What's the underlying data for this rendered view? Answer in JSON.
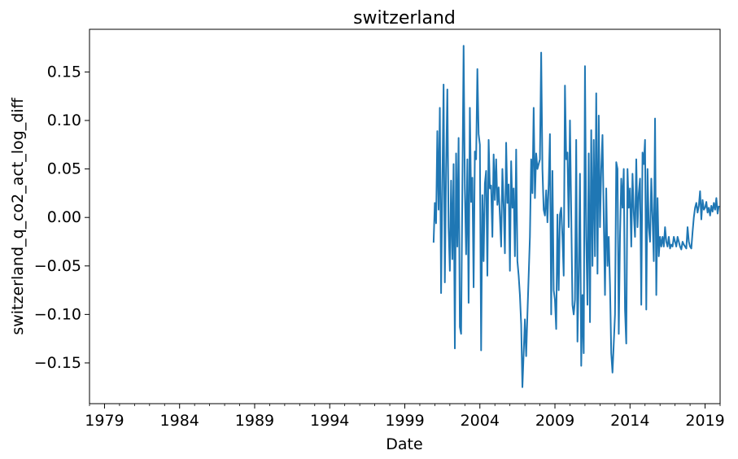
{
  "chart_data": {
    "type": "line",
    "title": "switzerland",
    "xlabel": "Date",
    "ylabel": "switzerland_q_co2_act_log_diff",
    "xlim": [
      "1978-01-01",
      "2020-01-01"
    ],
    "ylim": [
      -0.192,
      0.194
    ],
    "xticks": [
      {
        "date": "1979-01-01",
        "label": "1979"
      },
      {
        "date": "1984-01-01",
        "label": "1984"
      },
      {
        "date": "1989-01-01",
        "label": "1989"
      },
      {
        "date": "1994-01-01",
        "label": "1994"
      },
      {
        "date": "1999-01-01",
        "label": "1999"
      },
      {
        "date": "2004-01-01",
        "label": "2004"
      },
      {
        "date": "2009-01-01",
        "label": "2009"
      },
      {
        "date": "2014-01-01",
        "label": "2014"
      },
      {
        "date": "2019-01-01",
        "label": "2019"
      }
    ],
    "yticks": [
      {
        "value": 0.15,
        "label": "0.15"
      },
      {
        "value": 0.1,
        "label": "0.10"
      },
      {
        "value": 0.05,
        "label": "0.05"
      },
      {
        "value": 0.0,
        "label": "0.00"
      },
      {
        "value": -0.05,
        "label": "−0.05"
      },
      {
        "value": -0.1,
        "label": "−0.10"
      },
      {
        "value": -0.15,
        "label": "−0.15"
      }
    ],
    "grid": false,
    "series": [
      {
        "color": "#1f77b4",
        "points": [
          [
            "2000-12-01",
            -0.026
          ],
          [
            "2001-01-01",
            0.015
          ],
          [
            "2001-02-01",
            -0.006
          ],
          [
            "2001-03-01",
            0.089
          ],
          [
            "2001-04-01",
            0.008
          ],
          [
            "2001-05-01",
            0.113
          ],
          [
            "2001-06-01",
            -0.078
          ],
          [
            "2001-07-01",
            0.033
          ],
          [
            "2001-08-01",
            0.137
          ],
          [
            "2001-09-01",
            -0.067
          ],
          [
            "2001-10-01",
            0.05
          ],
          [
            "2001-11-01",
            0.132
          ],
          [
            "2001-12-01",
            -0.01
          ],
          [
            "2002-01-01",
            -0.055
          ],
          [
            "2002-02-01",
            0.038
          ],
          [
            "2002-03-01",
            -0.043
          ],
          [
            "2002-04-01",
            0.055
          ],
          [
            "2002-05-01",
            -0.135
          ],
          [
            "2002-06-01",
            0.066
          ],
          [
            "2002-07-01",
            -0.03
          ],
          [
            "2002-08-01",
            0.082
          ],
          [
            "2002-09-01",
            -0.113
          ],
          [
            "2002-10-01",
            -0.12
          ],
          [
            "2002-11-01",
            0.028
          ],
          [
            "2002-12-01",
            0.177
          ],
          [
            "2003-01-01",
            0.03
          ],
          [
            "2003-02-01",
            -0.038
          ],
          [
            "2003-03-01",
            0.06
          ],
          [
            "2003-04-01",
            -0.088
          ],
          [
            "2003-05-01",
            0.113
          ],
          [
            "2003-06-01",
            0.016
          ],
          [
            "2003-07-01",
            0.041
          ],
          [
            "2003-08-01",
            -0.072
          ],
          [
            "2003-09-01",
            0.068
          ],
          [
            "2003-10-01",
            0.06
          ],
          [
            "2003-11-01",
            0.153
          ],
          [
            "2003-12-01",
            0.086
          ],
          [
            "2004-01-01",
            0.075
          ],
          [
            "2004-02-01",
            -0.137
          ],
          [
            "2004-03-01",
            0.023
          ],
          [
            "2004-04-01",
            -0.045
          ],
          [
            "2004-05-01",
            0.035
          ],
          [
            "2004-06-01",
            0.048
          ],
          [
            "2004-07-01",
            -0.06
          ],
          [
            "2004-08-01",
            0.08
          ],
          [
            "2004-09-01",
            0.03
          ],
          [
            "2004-10-01",
            0.033
          ],
          [
            "2004-11-01",
            -0.02
          ],
          [
            "2004-12-01",
            0.065
          ],
          [
            "2005-01-01",
            0.018
          ],
          [
            "2005-02-01",
            0.06
          ],
          [
            "2005-03-01",
            0.013
          ],
          [
            "2005-04-01",
            0.031
          ],
          [
            "2005-05-01",
            0.002
          ],
          [
            "2005-06-01",
            -0.03
          ],
          [
            "2005-07-01",
            0.05
          ],
          [
            "2005-08-01",
            0.013
          ],
          [
            "2005-09-01",
            -0.037
          ],
          [
            "2005-10-01",
            0.077
          ],
          [
            "2005-11-01",
            0.015
          ],
          [
            "2005-12-01",
            0.034
          ],
          [
            "2006-01-01",
            -0.055
          ],
          [
            "2006-02-01",
            0.058
          ],
          [
            "2006-03-01",
            0.01
          ],
          [
            "2006-04-01",
            0.03
          ],
          [
            "2006-05-01",
            -0.04
          ],
          [
            "2006-06-01",
            0.07
          ],
          [
            "2006-07-01",
            -0.045
          ],
          [
            "2006-08-01",
            -0.06
          ],
          [
            "2006-09-01",
            -0.08
          ],
          [
            "2006-10-01",
            -0.11
          ],
          [
            "2006-11-01",
            -0.175
          ],
          [
            "2007-01-01",
            -0.105
          ],
          [
            "2007-02-01",
            -0.143
          ],
          [
            "2007-03-01",
            -0.1
          ],
          [
            "2007-04-01",
            -0.06
          ],
          [
            "2007-05-01",
            -0.02
          ],
          [
            "2007-06-01",
            0.06
          ],
          [
            "2007-07-01",
            0.025
          ],
          [
            "2007-08-01",
            0.113
          ],
          [
            "2007-09-01",
            0.02
          ],
          [
            "2007-10-01",
            0.066
          ],
          [
            "2007-11-01",
            0.05
          ],
          [
            "2007-12-01",
            0.055
          ],
          [
            "2008-01-01",
            0.06
          ],
          [
            "2008-02-01",
            0.17
          ],
          [
            "2008-03-01",
            0.05
          ],
          [
            "2008-04-01",
            0.008
          ],
          [
            "2008-05-01",
            0.002
          ],
          [
            "2008-06-01",
            0.028
          ],
          [
            "2008-07-01",
            -0.005
          ],
          [
            "2008-08-01",
            0.035
          ],
          [
            "2008-09-01",
            0.086
          ],
          [
            "2008-10-01",
            -0.1
          ],
          [
            "2008-11-01",
            0.048
          ],
          [
            "2008-12-01",
            -0.075
          ],
          [
            "2009-01-01",
            -0.085
          ],
          [
            "2009-02-01",
            -0.115
          ],
          [
            "2009-03-01",
            0.003
          ],
          [
            "2009-04-01",
            -0.075
          ],
          [
            "2009-05-01",
            0.003
          ],
          [
            "2009-06-01",
            0.01
          ],
          [
            "2009-07-01",
            -0.02
          ],
          [
            "2009-08-01",
            -0.06
          ],
          [
            "2009-09-01",
            0.136
          ],
          [
            "2009-10-01",
            0.06
          ],
          [
            "2009-11-01",
            0.067
          ],
          [
            "2009-12-01",
            -0.01
          ],
          [
            "2010-01-01",
            0.1
          ],
          [
            "2010-02-01",
            0.005
          ],
          [
            "2010-03-01",
            -0.09
          ],
          [
            "2010-04-01",
            -0.1
          ],
          [
            "2010-05-01",
            -0.085
          ],
          [
            "2010-06-01",
            0.08
          ],
          [
            "2010-07-01",
            -0.128
          ],
          [
            "2010-08-01",
            -0.06
          ],
          [
            "2010-09-01",
            0.045
          ],
          [
            "2010-10-01",
            -0.153
          ],
          [
            "2010-11-01",
            -0.08
          ],
          [
            "2010-12-01",
            -0.14
          ],
          [
            "2011-01-01",
            0.156
          ],
          [
            "2011-02-01",
            -0.02
          ],
          [
            "2011-03-01",
            -0.09
          ],
          [
            "2011-04-01",
            0.066
          ],
          [
            "2011-05-01",
            -0.108
          ],
          [
            "2011-06-01",
            0.09
          ],
          [
            "2011-07-01",
            -0.05
          ],
          [
            "2011-08-01",
            0.08
          ],
          [
            "2011-09-01",
            -0.04
          ],
          [
            "2011-10-01",
            0.128
          ],
          [
            "2011-11-01",
            -0.058
          ],
          [
            "2011-12-01",
            0.105
          ],
          [
            "2012-01-01",
            -0.01
          ],
          [
            "2012-02-01",
            0.05
          ],
          [
            "2012-03-01",
            0.085
          ],
          [
            "2012-04-01",
            0.0
          ],
          [
            "2012-05-01",
            -0.08
          ],
          [
            "2012-06-01",
            0.03
          ],
          [
            "2012-07-01",
            -0.05
          ],
          [
            "2012-08-01",
            -0.02
          ],
          [
            "2012-09-01",
            -0.07
          ],
          [
            "2012-10-01",
            -0.14
          ],
          [
            "2012-11-01",
            -0.16
          ],
          [
            "2012-12-01",
            -0.13
          ],
          [
            "2013-01-01",
            -0.1
          ],
          [
            "2013-02-01",
            0.057
          ],
          [
            "2013-03-01",
            0.05
          ],
          [
            "2013-04-01",
            -0.12
          ],
          [
            "2013-05-01",
            -0.02
          ],
          [
            "2013-06-01",
            0.04
          ],
          [
            "2013-07-01",
            0.01
          ],
          [
            "2013-08-01",
            0.05
          ],
          [
            "2013-09-01",
            -0.095
          ],
          [
            "2013-10-01",
            -0.13
          ],
          [
            "2013-11-01",
            0.05
          ],
          [
            "2013-12-01",
            0.01
          ],
          [
            "2014-01-01",
            0.03
          ],
          [
            "2014-02-01",
            -0.03
          ],
          [
            "2014-03-01",
            0.045
          ],
          [
            "2014-04-01",
            0.005
          ],
          [
            "2014-05-01",
            -0.02
          ],
          [
            "2014-06-01",
            0.06
          ],
          [
            "2014-07-01",
            -0.01
          ],
          [
            "2014-08-01",
            0.025
          ],
          [
            "2014-09-01",
            0.04
          ],
          [
            "2014-10-01",
            -0.09
          ],
          [
            "2014-11-01",
            0.067
          ],
          [
            "2014-12-01",
            0.055
          ],
          [
            "2015-01-01",
            0.08
          ],
          [
            "2015-02-01",
            -0.095
          ],
          [
            "2015-03-01",
            0.05
          ],
          [
            "2015-04-01",
            -0.01
          ],
          [
            "2015-05-01",
            -0.025
          ],
          [
            "2015-06-01",
            0.04
          ],
          [
            "2015-07-01",
            0.0
          ],
          [
            "2015-08-01",
            -0.045
          ],
          [
            "2015-09-01",
            0.102
          ],
          [
            "2015-10-01",
            -0.08
          ],
          [
            "2015-11-01",
            0.02
          ],
          [
            "2015-12-01",
            -0.04
          ],
          [
            "2016-01-01",
            -0.02
          ],
          [
            "2016-02-01",
            -0.03
          ],
          [
            "2016-03-01",
            -0.02
          ],
          [
            "2016-04-01",
            -0.03
          ],
          [
            "2016-05-01",
            -0.01
          ],
          [
            "2016-06-01",
            -0.025
          ],
          [
            "2016-07-01",
            -0.03
          ],
          [
            "2016-08-01",
            -0.02
          ],
          [
            "2016-09-01",
            -0.032
          ],
          [
            "2016-10-01",
            -0.028
          ],
          [
            "2016-11-01",
            -0.03
          ],
          [
            "2016-12-01",
            -0.02
          ],
          [
            "2017-01-01",
            -0.025
          ],
          [
            "2017-02-01",
            -0.03
          ],
          [
            "2017-03-01",
            -0.02
          ],
          [
            "2017-04-01",
            -0.025
          ],
          [
            "2017-05-01",
            -0.03
          ],
          [
            "2017-06-01",
            -0.033
          ],
          [
            "2017-07-01",
            -0.025
          ],
          [
            "2017-08-01",
            -0.028
          ],
          [
            "2017-09-01",
            -0.03
          ],
          [
            "2017-10-01",
            -0.032
          ],
          [
            "2017-11-01",
            -0.01
          ],
          [
            "2017-12-01",
            -0.025
          ],
          [
            "2018-01-01",
            -0.03
          ],
          [
            "2018-02-01",
            -0.032
          ],
          [
            "2018-03-01",
            -0.015
          ],
          [
            "2018-04-01",
            0.0
          ],
          [
            "2018-05-01",
            0.01
          ],
          [
            "2018-06-01",
            0.015
          ],
          [
            "2018-07-01",
            0.005
          ],
          [
            "2018-08-01",
            0.012
          ],
          [
            "2018-09-01",
            0.027
          ],
          [
            "2018-10-01",
            -0.002
          ],
          [
            "2018-11-01",
            0.018
          ],
          [
            "2018-12-01",
            0.008
          ],
          [
            "2019-01-01",
            0.01
          ],
          [
            "2019-02-01",
            0.016
          ],
          [
            "2019-03-01",
            0.005
          ],
          [
            "2019-04-01",
            0.01
          ],
          [
            "2019-05-01",
            0.002
          ],
          [
            "2019-06-01",
            0.012
          ],
          [
            "2019-07-01",
            0.006
          ],
          [
            "2019-08-01",
            0.015
          ],
          [
            "2019-09-01",
            0.008
          ],
          [
            "2019-10-01",
            0.02
          ],
          [
            "2019-11-01",
            0.004
          ],
          [
            "2019-12-01",
            0.012
          ]
        ]
      }
    ]
  }
}
